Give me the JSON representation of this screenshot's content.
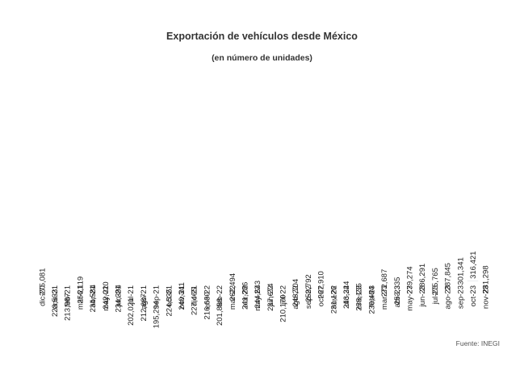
{
  "title": "Exportación de vehículos desde México",
  "subtitle": "(en número de unidades)",
  "source": "Fuente: INEGI",
  "colors": {
    "bar": "#2f4a5f"
  },
  "chart_data": {
    "type": "bar",
    "title": "Exportación de vehículos desde México",
    "subtitle": "(en número de unidades)",
    "categories": [
      "dic-20",
      "ene-21",
      "feb-21",
      "mar-21",
      "abr-21",
      "may-21",
      "jun-21",
      "jul-21",
      "ago-21",
      "sep-21",
      "oct-21",
      "nov-21",
      "dic-21",
      "ene-22",
      "feb-22",
      "mar-22",
      "abr-22",
      "may-22",
      "jun-22",
      "jul-22",
      "ago-22",
      "sep-22",
      "oct-22",
      "nov-22",
      "dic-22",
      "ene-23",
      "feb-23",
      "mar-23",
      "abr-23",
      "may-23",
      "jun-23",
      "jul-23",
      "ago-23",
      "sep-23",
      "oct-23",
      "nov-23"
    ],
    "values": [
      275081,
      223533,
      213987,
      256119,
      234584,
      242020,
      234394,
      202021,
      212687,
      195294,
      224535,
      240341,
      227465,
      216630,
      201868,
      262494,
      241286,
      244643,
      237674,
      210170,
      248704,
      259792,
      267910,
      231126,
      243344,
      238135,
      230484,
      272687,
      253335,
      279274,
      286291,
      275765,
      287845,
      301341,
      316421,
      281298
    ],
    "value_labels": [
      "275,081",
      "223,533",
      "213,987",
      "256,119",
      "234,584",
      "242,020",
      "234,394",
      "202,021",
      "212,687",
      "195,294",
      "224,535",
      "240,341",
      "227,465",
      "216,630",
      "201,868",
      "262,494",
      "241,286",
      "244,643",
      "237,674",
      "210,170",
      "248,704",
      "259,792",
      "267,910",
      "231,126",
      "243,344",
      "238,135",
      "230,484",
      "272,687",
      "253,335",
      "279,274",
      "286,291",
      "275,765",
      "287,845",
      "301,341",
      "316,421",
      "281,298"
    ],
    "xlabel": "",
    "ylabel": "",
    "grid": false,
    "legend": false
  }
}
